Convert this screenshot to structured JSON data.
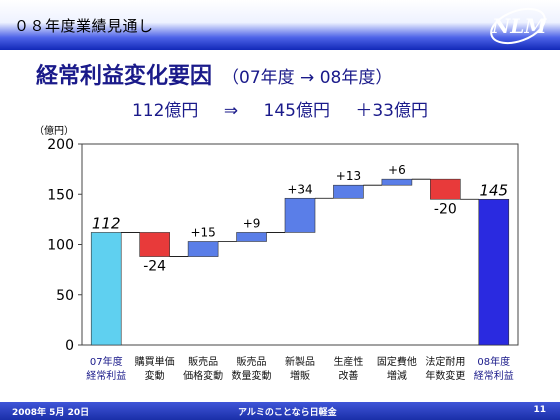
{
  "header": {
    "title": "０８年度業績見通し",
    "logo_text": "NLM"
  },
  "slide": {
    "title": "経常利益変化要因",
    "subtitle": "（07年度 → 08年度）",
    "summary": [
      "112億円",
      "⇒",
      "145億円",
      "＋33億円"
    ]
  },
  "chart_data": {
    "type": "waterfall",
    "ylabel": "（億円）",
    "ylim": [
      0,
      200
    ],
    "yticks": [
      0,
      50,
      100,
      150,
      200
    ],
    "categories": [
      [
        "07年度",
        "経常利益"
      ],
      [
        "購買単価",
        "変動"
      ],
      [
        "販売品",
        "価格変動"
      ],
      [
        "販売品",
        "数量変動"
      ],
      [
        "新製品",
        "増販"
      ],
      [
        "生産性",
        "改善"
      ],
      [
        "固定費他",
        "増減"
      ],
      [
        "法定耐用",
        "年数変更"
      ],
      [
        "08年度",
        "経常利益"
      ]
    ],
    "values": [
      112,
      -24,
      15,
      9,
      34,
      13,
      6,
      -20,
      145
    ],
    "labels": [
      "112",
      "-24",
      "+15",
      "+9",
      "+34",
      "+13",
      "+6",
      "-20",
      "145"
    ],
    "colors": {
      "start_total": "#5fd0f0",
      "increase": "#5a7ee8",
      "decrease": "#e83a3a",
      "end_total": "#2a2ae0",
      "axis_label": "#1a1a8a"
    }
  },
  "footer": {
    "date": "2008年 5月 20日",
    "company": "アルミのことなら日軽金",
    "page": "11"
  }
}
